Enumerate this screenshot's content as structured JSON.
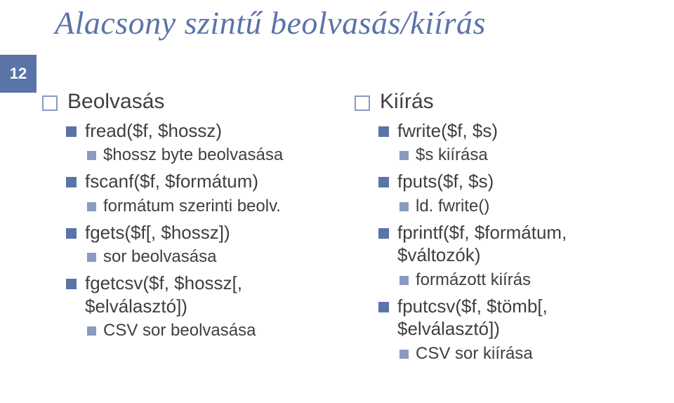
{
  "page_number": "12",
  "title": "Alacsony szintű beolvasás/kiírás",
  "colors": {
    "accent": "#5a74a8",
    "accent_light": "#8a9bbf",
    "text": "#3f3f3f",
    "background": "#ffffff"
  },
  "left": {
    "h1": "Beolvasás",
    "items": [
      {
        "l2": "fread($f, $hossz)",
        "l3": "$hossz byte beolvasása"
      },
      {
        "l2": "fscanf($f, $formátum)",
        "l3": "formátum szerinti beolv."
      },
      {
        "l2": "fgets($f[, $hossz])",
        "l3": "sor beolvasása"
      },
      {
        "l2": "fgetcsv($f, $hossz[, $elválasztó])",
        "l3": "CSV sor beolvasása"
      }
    ]
  },
  "right": {
    "h1": "Kiírás",
    "items": [
      {
        "l2": "fwrite($f, $s)",
        "l3": "$s kiírása"
      },
      {
        "l2": "fputs($f, $s)",
        "l3": "ld. fwrite()"
      },
      {
        "l2": "fprintf($f, $formátum, $változók)",
        "l3": "formázott kiírás"
      },
      {
        "l2": "fputcsv($f, $tömb[, $elválasztó])",
        "l3": "CSV sor kiírása"
      }
    ]
  }
}
